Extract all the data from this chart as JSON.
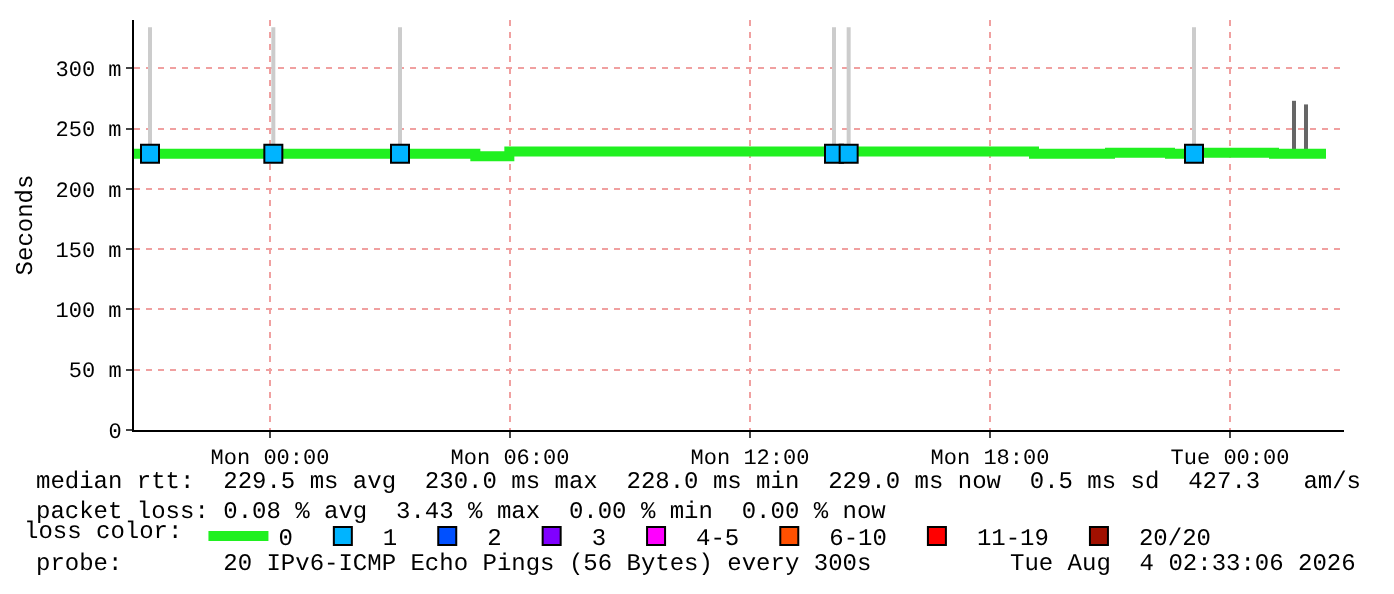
{
  "chart_data": {
    "type": "step",
    "ylabel": "Seconds",
    "x": [
      "2026-08-02T20:36",
      "2026-08-03T05:08",
      "2026-08-03T05:59",
      "2026-08-03T19:06",
      "2026-08-03T21:00",
      "2026-08-03T22:30",
      "2026-08-03T23:00",
      "2026-08-04T01:06",
      "2026-08-04T02:24"
    ],
    "series": [
      {
        "name": "0",
        "color": "#20f020",
        "values": [
          229,
          227,
          231,
          229,
          230,
          229,
          230,
          229,
          229
        ]
      },
      {
        "name": "1",
        "color": "#00b4ff",
        "type": "scatter",
        "marker": "square",
        "x": [
          "2026-08-02T21:00",
          "2026-08-03T00:05",
          "2026-08-03T03:15",
          "2026-08-03T14:06",
          "2026-08-03T14:28",
          "2026-08-03T23:06"
        ],
        "values": [
          229,
          229,
          229,
          229,
          229,
          229
        ]
      },
      {
        "name": "2",
        "color": "#0050ff",
        "type": "scatter",
        "marker": "square",
        "values": [
          null,
          null,
          null,
          null,
          null,
          null,
          null,
          null,
          null
        ]
      },
      {
        "name": "3",
        "color": "#8000ff",
        "type": "scatter",
        "marker": "square",
        "values": [
          null,
          null,
          null,
          null,
          null,
          null,
          null,
          null,
          null
        ]
      },
      {
        "name": "4-5",
        "color": "#ff00ff",
        "type": "scatter",
        "marker": "square",
        "values": [
          null,
          null,
          null,
          null,
          null,
          null,
          null,
          null,
          null
        ]
      },
      {
        "name": "6-10",
        "color": "#ff5000",
        "type": "scatter",
        "marker": "square",
        "values": [
          null,
          null,
          null,
          null,
          null,
          null,
          null,
          null,
          null
        ]
      },
      {
        "name": "11-19",
        "color": "#ff0000",
        "type": "scatter",
        "marker": "square",
        "values": [
          null,
          null,
          null,
          null,
          null,
          null,
          null,
          null,
          null
        ]
      },
      {
        "name": "20/20",
        "color": "#a01000",
        "type": "scatter",
        "marker": "square",
        "values": [
          null,
          null,
          null,
          null,
          null,
          null,
          null,
          null,
          null
        ]
      },
      {
        "color": "#cccccc",
        "type": "bar",
        "x": [
          "2026-08-02T21:00",
          "2026-08-03T00:05",
          "2026-08-03T03:15",
          "2026-08-03T14:06",
          "2026-08-03T14:28",
          "2026-08-03T23:06"
        ],
        "base": [
          229,
          229,
          229,
          229,
          229,
          229
        ],
        "values": [
          105,
          105,
          105,
          105,
          105,
          105
        ]
      },
      {
        "color": "#666666",
        "type": "bar",
        "x": [
          "2026-08-04T01:36",
          "2026-08-04T01:54"
        ],
        "base": [
          229,
          229
        ],
        "values": [
          44,
          41
        ]
      }
    ],
    "xlim": [
      "2026-08-02T20:36",
      "2026-08-04T02:51"
    ],
    "xticks": [
      {
        "value": "2026-08-03T00:00",
        "label": "Mon 00:00"
      },
      {
        "value": "2026-08-03T06:00",
        "label": "Mon 06:00"
      },
      {
        "value": "2026-08-03T12:00",
        "label": "Mon 12:00"
      },
      {
        "value": "2026-08-03T18:00",
        "label": "Mon 18:00"
      },
      {
        "value": "2026-08-04T00:00",
        "label": "Tue 00:00"
      }
    ],
    "ylim": [
      0,
      340
    ],
    "yticks": [
      {
        "value": 0,
        "label": "0"
      },
      {
        "value": 50,
        "label": "50 m"
      },
      {
        "value": 100,
        "label": "100 m"
      },
      {
        "value": 150,
        "label": "150 m"
      },
      {
        "value": 200,
        "label": "200 m"
      },
      {
        "value": 250,
        "label": "250 m"
      },
      {
        "value": 300,
        "label": "300 m"
      }
    ],
    "grid": true,
    "legend": "bottom",
    "legend_title": "loss color:",
    "annotations": [
      "median rtt:  229.5 ms avg  230.0 ms max  228.0 ms min  229.0 ms now  0.5 ms sd  427.3   am/s",
      "packet loss: 0.08 % avg  3.43 % max  0.00 % min  0.00 % now",
      "probe:       20 IPv6-ICMP Echo Pings (56 Bytes) every 300s",
      "Tue Aug  4 02:33:06 2026"
    ]
  }
}
